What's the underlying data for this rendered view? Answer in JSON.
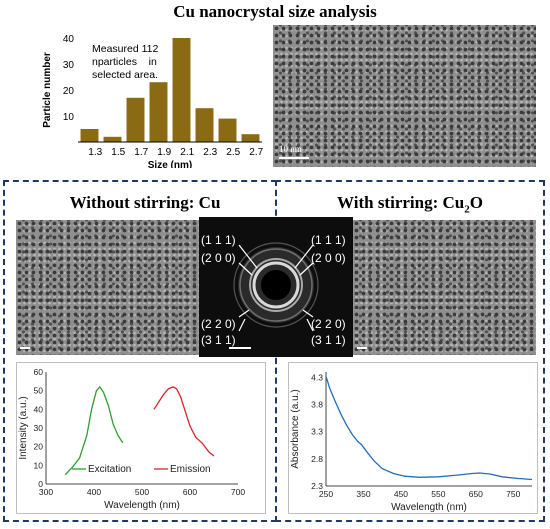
{
  "title": "Cu nanocrystal size analysis",
  "top_histogram": {
    "annotation_lines": [
      "Measured 112",
      "nparticles    in",
      "selected area."
    ],
    "scale_label": "10 nm"
  },
  "left_panel": {
    "title": "Without stirring: Cu"
  },
  "right_panel": {
    "title_main": "With stirring: Cu",
    "title_sub": "2",
    "title_end": "O"
  },
  "diffraction": {
    "labels_left": [
      "(1 1 1)",
      "(2 0 0)",
      "(2 2 0)",
      "(3 1 1)"
    ],
    "labels_right": [
      "(1 1 1)",
      "(2 0 0)",
      "(2 2 0)",
      "(3 1 1)"
    ]
  },
  "colors": {
    "bar": "#8b6a14",
    "dash": "#1f3864",
    "excitation": "#2ca02c",
    "emission": "#d62728",
    "absorbance": "#1f6fbf"
  },
  "chart_data": [
    {
      "type": "bar",
      "categories": [
        "1.3",
        "1.5",
        "1.7",
        "1.9",
        "2.1",
        "2.3",
        "2.5",
        "2.7"
      ],
      "bars": [
        {
          "center": 1.25,
          "value": 5
        },
        {
          "center": 1.45,
          "value": 2
        },
        {
          "center": 1.65,
          "value": 17
        },
        {
          "center": 1.85,
          "value": 23
        },
        {
          "center": 2.05,
          "value": 40
        },
        {
          "center": 2.25,
          "value": 13
        },
        {
          "center": 2.45,
          "value": 9
        },
        {
          "center": 2.65,
          "value": 3
        }
      ],
      "xlabel": "Size (nm)",
      "ylabel": "Particle number",
      "yticks": [
        "10",
        "20",
        "30",
        "40"
      ],
      "ylim": [
        0,
        40
      ],
      "xlim": [
        1.15,
        2.75
      ]
    },
    {
      "type": "line",
      "xlabel": "Wavelength (nm)",
      "ylabel": "Intensity (a.u.)",
      "xlim": [
        300,
        700
      ],
      "ylim": [
        0,
        60
      ],
      "xticks": [
        "300",
        "400",
        "500",
        "600",
        "700"
      ],
      "yticks": [
        "0",
        "10",
        "20",
        "30",
        "40",
        "50",
        "60"
      ],
      "legend_position": "bottom",
      "series": [
        {
          "name": "Excitation",
          "x": [
            340,
            355,
            370,
            385,
            395,
            405,
            412,
            420,
            430,
            440,
            450,
            460
          ],
          "y": [
            5,
            9,
            14,
            26,
            40,
            50,
            52,
            49,
            42,
            32,
            26,
            22
          ]
        },
        {
          "name": "Emission",
          "x": [
            525,
            535,
            545,
            555,
            565,
            572,
            580,
            590,
            600,
            612,
            625,
            640,
            650
          ],
          "y": [
            40,
            44,
            48,
            51,
            52,
            51,
            47,
            39,
            31,
            25,
            22,
            17,
            15
          ]
        }
      ]
    },
    {
      "type": "line",
      "xlabel": "Wavelength (nm)",
      "ylabel": "Absorbance (a.u.)",
      "xlim": [
        250,
        800
      ],
      "ylim": [
        2.3,
        4.4
      ],
      "xticks": [
        "250",
        "350",
        "450",
        "550",
        "650",
        "750"
      ],
      "yticks": [
        "2.3",
        "2.8",
        "3.3",
        "3.8",
        "4.3"
      ],
      "series": [
        {
          "x": [
            250,
            260,
            275,
            290,
            305,
            320,
            335,
            345,
            360,
            380,
            400,
            430,
            460,
            500,
            550,
            600,
            640,
            660,
            690,
            720,
            760,
            800
          ],
          "y": [
            4.32,
            4.1,
            3.85,
            3.62,
            3.42,
            3.25,
            3.12,
            3.06,
            2.92,
            2.75,
            2.62,
            2.53,
            2.48,
            2.46,
            2.47,
            2.5,
            2.53,
            2.54,
            2.52,
            2.47,
            2.44,
            2.42
          ]
        }
      ]
    }
  ]
}
